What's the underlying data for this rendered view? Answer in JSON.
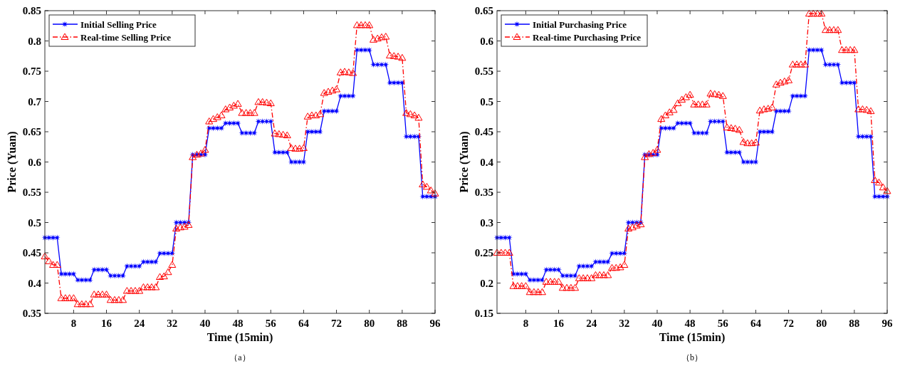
{
  "chart_data": [
    {
      "type": "line",
      "xlabel": "Time (15min)",
      "ylabel": "Price (Yuan)",
      "annotations": [
        "（a）"
      ],
      "x": [
        1,
        2,
        3,
        4,
        5,
        6,
        7,
        8,
        9,
        10,
        11,
        12,
        13,
        14,
        15,
        16,
        17,
        18,
        19,
        20,
        21,
        22,
        23,
        24,
        25,
        26,
        27,
        28,
        29,
        30,
        31,
        32,
        33,
        34,
        35,
        36,
        37,
        38,
        39,
        40,
        41,
        42,
        43,
        44,
        45,
        46,
        47,
        48,
        49,
        50,
        51,
        52,
        53,
        54,
        55,
        56,
        57,
        58,
        59,
        60,
        61,
        62,
        63,
        64,
        65,
        66,
        67,
        68,
        69,
        70,
        71,
        72,
        73,
        74,
        75,
        76,
        77,
        78,
        79,
        80,
        81,
        82,
        83,
        84,
        85,
        86,
        87,
        88,
        89,
        90,
        91,
        92,
        93,
        94,
        95,
        96
      ],
      "xlim": [
        1,
        96
      ],
      "xticks": [
        8,
        16,
        24,
        32,
        40,
        48,
        56,
        64,
        72,
        80,
        88,
        96
      ],
      "ylim": [
        0.35,
        0.85
      ],
      "yticks": [
        0.35,
        0.4,
        0.45,
        0.5,
        0.55,
        0.6,
        0.65,
        0.7,
        0.75,
        0.8,
        0.85
      ],
      "grid": false,
      "legend": "top left",
      "series": [
        {
          "name": "Initial Selling Price",
          "color": "#0000ff",
          "marker": "star",
          "line_style": "solid",
          "values": [
            0.475,
            0.475,
            0.475,
            0.475,
            0.415,
            0.415,
            0.415,
            0.415,
            0.405,
            0.405,
            0.405,
            0.405,
            0.422,
            0.422,
            0.422,
            0.422,
            0.412,
            0.412,
            0.412,
            0.412,
            0.428,
            0.428,
            0.428,
            0.428,
            0.435,
            0.435,
            0.435,
            0.435,
            0.449,
            0.449,
            0.449,
            0.449,
            0.5,
            0.5,
            0.5,
            0.5,
            0.612,
            0.612,
            0.612,
            0.612,
            0.656,
            0.656,
            0.656,
            0.656,
            0.664,
            0.664,
            0.664,
            0.664,
            0.648,
            0.648,
            0.648,
            0.648,
            0.667,
            0.667,
            0.667,
            0.667,
            0.616,
            0.616,
            0.616,
            0.616,
            0.6,
            0.6,
            0.6,
            0.6,
            0.65,
            0.65,
            0.65,
            0.65,
            0.684,
            0.684,
            0.684,
            0.684,
            0.709,
            0.709,
            0.709,
            0.709,
            0.785,
            0.785,
            0.785,
            0.785,
            0.761,
            0.761,
            0.761,
            0.761,
            0.731,
            0.731,
            0.731,
            0.731,
            0.642,
            0.642,
            0.642,
            0.642,
            0.543,
            0.543,
            0.543,
            0.543
          ]
        },
        {
          "name": "Real-time Selling Price",
          "color": "#ff0000",
          "marker": "triangle",
          "line_style": "dashed",
          "values": [
            0.444,
            0.436,
            0.43,
            0.43,
            0.375,
            0.375,
            0.375,
            0.375,
            0.365,
            0.365,
            0.365,
            0.365,
            0.381,
            0.381,
            0.381,
            0.381,
            0.372,
            0.372,
            0.372,
            0.372,
            0.387,
            0.387,
            0.387,
            0.387,
            0.393,
            0.393,
            0.393,
            0.393,
            0.41,
            0.411,
            0.418,
            0.43,
            0.49,
            0.492,
            0.493,
            0.496,
            0.608,
            0.612,
            0.614,
            0.62,
            0.667,
            0.671,
            0.674,
            0.677,
            0.687,
            0.69,
            0.693,
            0.696,
            0.681,
            0.681,
            0.681,
            0.681,
            0.699,
            0.699,
            0.698,
            0.697,
            0.647,
            0.646,
            0.645,
            0.644,
            0.623,
            0.622,
            0.622,
            0.623,
            0.675,
            0.677,
            0.677,
            0.679,
            0.714,
            0.716,
            0.718,
            0.72,
            0.748,
            0.749,
            0.748,
            0.747,
            0.826,
            0.826,
            0.826,
            0.826,
            0.802,
            0.804,
            0.806,
            0.807,
            0.776,
            0.775,
            0.774,
            0.772,
            0.681,
            0.679,
            0.677,
            0.673,
            0.563,
            0.559,
            0.553,
            0.548
          ]
        }
      ]
    },
    {
      "type": "line",
      "xlabel": "Time (15min)",
      "ylabel": "Price (Yuan)",
      "annotations": [
        "（b）"
      ],
      "x": [
        1,
        2,
        3,
        4,
        5,
        6,
        7,
        8,
        9,
        10,
        11,
        12,
        13,
        14,
        15,
        16,
        17,
        18,
        19,
        20,
        21,
        22,
        23,
        24,
        25,
        26,
        27,
        28,
        29,
        30,
        31,
        32,
        33,
        34,
        35,
        36,
        37,
        38,
        39,
        40,
        41,
        42,
        43,
        44,
        45,
        46,
        47,
        48,
        49,
        50,
        51,
        52,
        53,
        54,
        55,
        56,
        57,
        58,
        59,
        60,
        61,
        62,
        63,
        64,
        65,
        66,
        67,
        68,
        69,
        70,
        71,
        72,
        73,
        74,
        75,
        76,
        77,
        78,
        79,
        80,
        81,
        82,
        83,
        84,
        85,
        86,
        87,
        88,
        89,
        90,
        91,
        92,
        93,
        94,
        95,
        96
      ],
      "xlim": [
        1,
        96
      ],
      "xticks": [
        8,
        16,
        24,
        32,
        40,
        48,
        56,
        64,
        72,
        80,
        88,
        96
      ],
      "ylim": [
        0.15,
        0.65
      ],
      "yticks": [
        0.15,
        0.2,
        0.25,
        0.3,
        0.35,
        0.4,
        0.45,
        0.5,
        0.55,
        0.6,
        0.65
      ],
      "grid": false,
      "legend": "top left",
      "series": [
        {
          "name": "Initial Purchasing Price",
          "color": "#0000ff",
          "marker": "star",
          "line_style": "solid",
          "values": [
            0.275,
            0.275,
            0.275,
            0.275,
            0.215,
            0.215,
            0.215,
            0.215,
            0.205,
            0.205,
            0.205,
            0.205,
            0.222,
            0.222,
            0.222,
            0.222,
            0.212,
            0.212,
            0.212,
            0.212,
            0.228,
            0.228,
            0.228,
            0.228,
            0.235,
            0.235,
            0.235,
            0.235,
            0.249,
            0.249,
            0.249,
            0.249,
            0.3,
            0.3,
            0.3,
            0.3,
            0.412,
            0.412,
            0.412,
            0.412,
            0.456,
            0.456,
            0.456,
            0.456,
            0.464,
            0.464,
            0.464,
            0.464,
            0.448,
            0.448,
            0.448,
            0.448,
            0.467,
            0.467,
            0.467,
            0.467,
            0.416,
            0.416,
            0.416,
            0.416,
            0.4,
            0.4,
            0.4,
            0.4,
            0.45,
            0.45,
            0.45,
            0.45,
            0.484,
            0.484,
            0.484,
            0.484,
            0.509,
            0.509,
            0.509,
            0.509,
            0.585,
            0.585,
            0.585,
            0.585,
            0.561,
            0.561,
            0.561,
            0.561,
            0.531,
            0.531,
            0.531,
            0.531,
            0.442,
            0.442,
            0.442,
            0.442,
            0.343,
            0.343,
            0.343,
            0.343
          ]
        },
        {
          "name": "Real-time Purchasing Price",
          "color": "#ff0000",
          "marker": "triangle",
          "line_style": "dashed",
          "values": [
            0.25,
            0.25,
            0.25,
            0.25,
            0.195,
            0.195,
            0.195,
            0.195,
            0.185,
            0.185,
            0.185,
            0.185,
            0.202,
            0.202,
            0.202,
            0.202,
            0.192,
            0.192,
            0.192,
            0.192,
            0.208,
            0.208,
            0.208,
            0.208,
            0.213,
            0.213,
            0.213,
            0.213,
            0.225,
            0.225,
            0.226,
            0.23,
            0.29,
            0.292,
            0.295,
            0.297,
            0.408,
            0.413,
            0.415,
            0.42,
            0.471,
            0.477,
            0.482,
            0.486,
            0.497,
            0.503,
            0.507,
            0.511,
            0.495,
            0.495,
            0.495,
            0.495,
            0.513,
            0.512,
            0.511,
            0.509,
            0.457,
            0.456,
            0.455,
            0.453,
            0.433,
            0.431,
            0.431,
            0.432,
            0.485,
            0.487,
            0.488,
            0.49,
            0.528,
            0.531,
            0.533,
            0.535,
            0.561,
            0.561,
            0.561,
            0.561,
            0.645,
            0.645,
            0.645,
            0.645,
            0.618,
            0.618,
            0.618,
            0.618,
            0.585,
            0.585,
            0.585,
            0.585,
            0.487,
            0.487,
            0.486,
            0.484,
            0.37,
            0.366,
            0.358,
            0.352
          ]
        }
      ]
    }
  ]
}
